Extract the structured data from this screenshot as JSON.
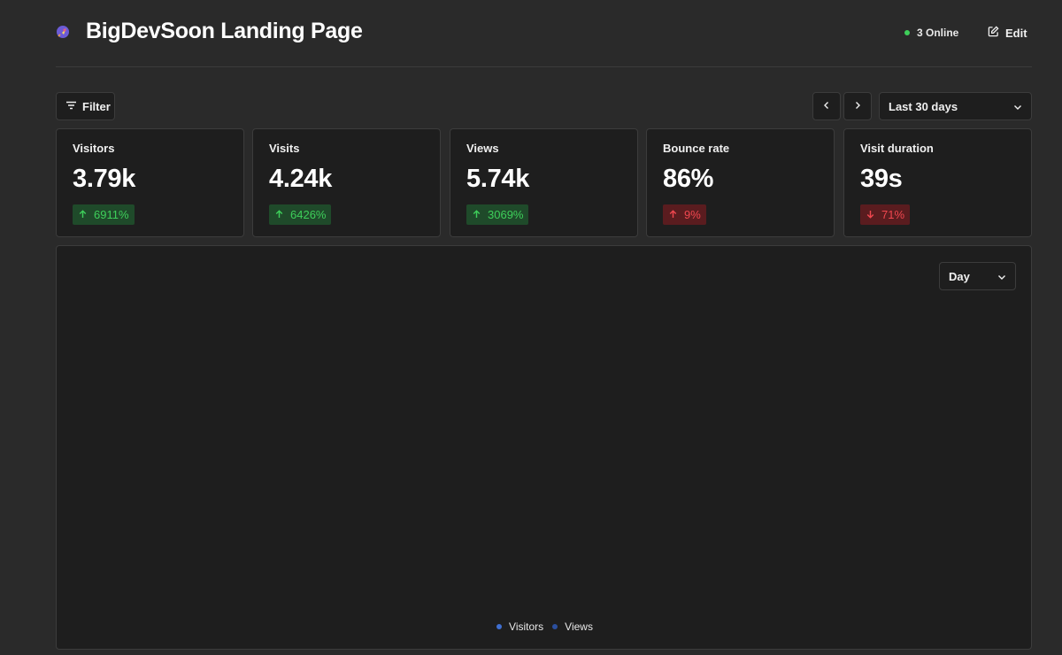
{
  "header": {
    "title": "BigDevSoon Landing Page",
    "online_text": "3 Online",
    "online_color": "#3ecf5a",
    "edit_label": "Edit",
    "edit_icon": "edit-icon",
    "logo_icon": "rocket-logo-icon"
  },
  "toolbar": {
    "filter_label": "Filter",
    "filter_icon": "filter-lines-icon",
    "prev_icon": "chevron-left-icon",
    "next_icon": "chevron-right-icon",
    "range_selected": "Last 30 days"
  },
  "metrics": [
    {
      "label": "Visitors",
      "value": "3.79k",
      "change": "6911%",
      "direction": "up",
      "status": "good"
    },
    {
      "label": "Visits",
      "value": "4.24k",
      "change": "6426%",
      "direction": "up",
      "status": "good"
    },
    {
      "label": "Views",
      "value": "5.74k",
      "change": "3069%",
      "direction": "up",
      "status": "good"
    },
    {
      "label": "Bounce rate",
      "value": "86%",
      "change": "9%",
      "direction": "up",
      "status": "bad"
    },
    {
      "label": "Visit duration",
      "value": "39s",
      "change": "71%",
      "direction": "down",
      "status": "bad"
    }
  ],
  "chart": {
    "interval_selected": "Day",
    "legend": [
      {
        "name": "Visitors",
        "color": "#3f6fd1"
      },
      {
        "name": "Views",
        "color": "#2b4f9e"
      }
    ]
  },
  "colors": {
    "background": "#2a2a2a",
    "panel": "#1e1e1e",
    "border": "#3c3c3c",
    "positive": "#3ecf5a",
    "negative": "#f0474f"
  }
}
